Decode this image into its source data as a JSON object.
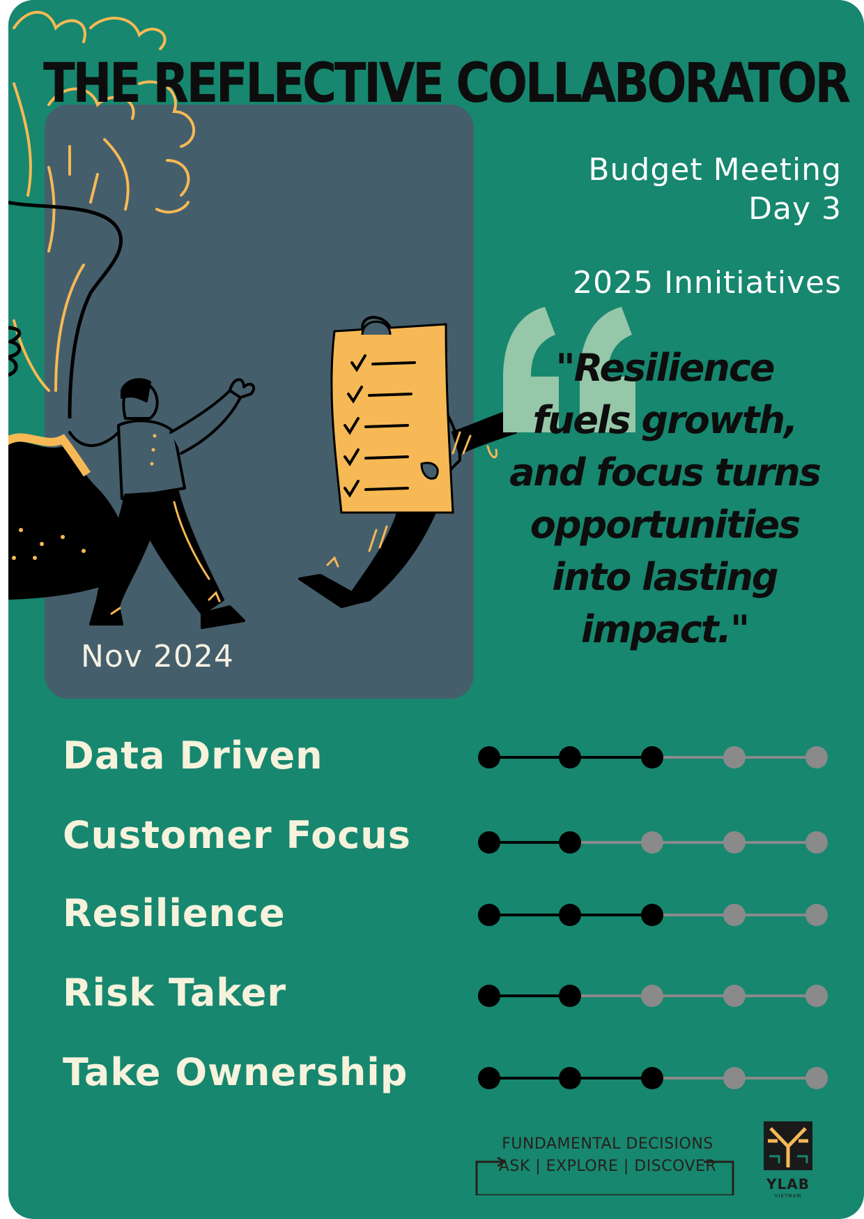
{
  "title": "THE REFLECTIVE COLLABORATOR",
  "meeting": {
    "line1": "Budget Meeting",
    "line2": "Day 3"
  },
  "initiatives": "2025 Innitiatives",
  "quote": "\"Resilience fuels growth, and focus turns opportunities into lasting impact.\"",
  "date": "Nov 2024",
  "traits": [
    {
      "label": "Data Driven",
      "score": 3,
      "max": 5
    },
    {
      "label": "Customer Focus",
      "score": 2,
      "max": 5
    },
    {
      "label": "Resilience",
      "score": 3,
      "max": 5
    },
    {
      "label": "Risk Taker",
      "score": 2,
      "max": 5
    },
    {
      "label": "Take Ownership",
      "score": 3,
      "max": 5
    }
  ],
  "footer": {
    "line1": "FUNDAMENTAL DECISIONS",
    "line2": "ASK | EXPLORE | DISCOVER"
  },
  "logo": {
    "name": "YLAB",
    "sub": "VIETNAM"
  },
  "colors": {
    "background": "#17876f",
    "panel": "#455e6b",
    "accent": "#f7b955",
    "quote_mark": "#95c7a8",
    "filled_dot": "#000000",
    "empty_dot": "#8a8a8a",
    "label_text": "#f6f2dc"
  }
}
